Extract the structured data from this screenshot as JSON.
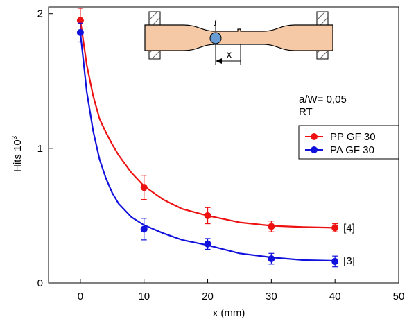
{
  "colors": {
    "pp": "#ee1111",
    "pa": "#1111dd",
    "specimen_fill": "#f5c9a6"
  },
  "chart_data": {
    "type": "scatter",
    "xlabel": "x  (mm)",
    "ylabel": "Hits 10",
    "ylabel_sup": "3",
    "xlim": [
      -5,
      50
    ],
    "ylim": [
      0,
      2.05
    ],
    "x_ticks": [
      0,
      10,
      20,
      30,
      40,
      50
    ],
    "y_ticks": [
      0,
      1,
      2
    ],
    "grid": false,
    "legend_position": "right",
    "annotations": [
      "a/W= 0,05",
      "RT"
    ],
    "series": [
      {
        "name": "PP GF 30",
        "color": "#ee1111",
        "ref": "[4]",
        "points": [
          {
            "x": 0,
            "y": 1.95,
            "err": 0.09
          },
          {
            "x": 10,
            "y": 0.71,
            "err": 0.09
          },
          {
            "x": 20,
            "y": 0.5,
            "err": 0.06
          },
          {
            "x": 30,
            "y": 0.42,
            "err": 0.04
          },
          {
            "x": 40,
            "y": 0.41,
            "err": 0.03
          }
        ],
        "fit": [
          [
            0,
            1.95
          ],
          [
            1,
            1.62
          ],
          [
            2,
            1.39
          ],
          [
            3,
            1.22
          ],
          [
            4,
            1.12
          ],
          [
            5,
            1.03
          ],
          [
            6,
            0.95
          ],
          [
            8,
            0.82
          ],
          [
            10,
            0.72
          ],
          [
            13,
            0.62
          ],
          [
            16,
            0.55
          ],
          [
            20,
            0.5
          ],
          [
            25,
            0.45
          ],
          [
            30,
            0.425
          ],
          [
            35,
            0.415
          ],
          [
            40,
            0.41
          ]
        ]
      },
      {
        "name": "PA GF 30",
        "color": "#1111dd",
        "ref": "[3]",
        "points": [
          {
            "x": 0,
            "y": 1.86,
            "err": 0.07
          },
          {
            "x": 10,
            "y": 0.4,
            "err": 0.08
          },
          {
            "x": 20,
            "y": 0.29,
            "err": 0.04
          },
          {
            "x": 30,
            "y": 0.18,
            "err": 0.04
          },
          {
            "x": 40,
            "y": 0.16,
            "err": 0.04
          }
        ],
        "fit": [
          [
            0,
            1.86
          ],
          [
            1,
            1.42
          ],
          [
            2,
            1.13
          ],
          [
            3,
            0.92
          ],
          [
            4,
            0.78
          ],
          [
            5,
            0.67
          ],
          [
            6,
            0.59
          ],
          [
            8,
            0.49
          ],
          [
            10,
            0.43
          ],
          [
            13,
            0.37
          ],
          [
            16,
            0.32
          ],
          [
            20,
            0.28
          ],
          [
            25,
            0.22
          ],
          [
            30,
            0.19
          ],
          [
            35,
            0.17
          ],
          [
            40,
            0.165
          ]
        ]
      }
    ]
  },
  "inset": {
    "dimension_label": "x"
  }
}
